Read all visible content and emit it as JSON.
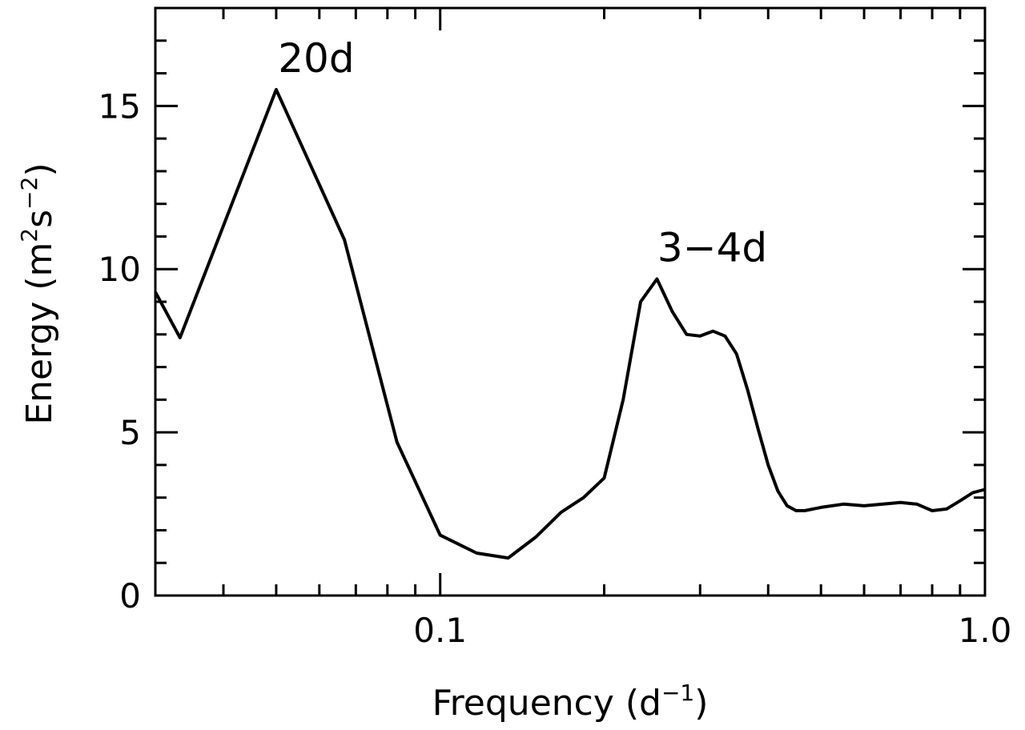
{
  "chart_data": {
    "type": "line",
    "xlabel": "Frequency (d",
    "xlabel_sup": "−1",
    "xlabel_close": ")",
    "ylabel": "Energy (m",
    "ylabel_sup1": "2",
    "ylabel_mid": "s",
    "ylabel_sup2": "−2",
    "ylabel_close": ")",
    "xscale": "log",
    "xlim": [
      0.03,
      1.0
    ],
    "ylim": [
      0,
      18
    ],
    "x_ticks": [
      {
        "value": 0.1,
        "label": "0.1"
      },
      {
        "value": 1.0,
        "label": "1.0"
      }
    ],
    "y_ticks": [
      {
        "value": 0,
        "label": "0"
      },
      {
        "value": 5,
        "label": "5"
      },
      {
        "value": 10,
        "label": "10"
      },
      {
        "value": 15,
        "label": "15"
      }
    ],
    "line_color": "#000000",
    "series": [
      {
        "x": [
          0.03,
          0.0333,
          0.05,
          0.0667,
          0.0833,
          0.1,
          0.1167,
          0.1333,
          0.15,
          0.1667,
          0.1833,
          0.2,
          0.2167,
          0.2333,
          0.25,
          0.2667,
          0.2833,
          0.3,
          0.3167,
          0.3333,
          0.35,
          0.3667,
          0.3833,
          0.4,
          0.4167,
          0.4333,
          0.45,
          0.4667,
          0.5,
          0.55,
          0.6,
          0.65,
          0.7,
          0.75,
          0.8,
          0.85,
          0.9,
          0.95,
          1.0
        ],
        "y": [
          9.3,
          7.9,
          15.5,
          10.9,
          4.7,
          1.85,
          1.3,
          1.15,
          1.8,
          2.55,
          3.0,
          3.6,
          6.0,
          9.0,
          9.7,
          8.7,
          8.0,
          7.95,
          8.1,
          7.95,
          7.4,
          6.3,
          5.1,
          4.0,
          3.2,
          2.75,
          2.6,
          2.6,
          2.7,
          2.8,
          2.75,
          2.8,
          2.85,
          2.8,
          2.6,
          2.65,
          2.9,
          3.15,
          3.25
        ]
      }
    ],
    "annotations": [
      {
        "text": "20d",
        "x": 0.05,
        "y": 15.5
      },
      {
        "text": "3−4d",
        "x": 0.2667,
        "y": 9.7
      }
    ]
  }
}
